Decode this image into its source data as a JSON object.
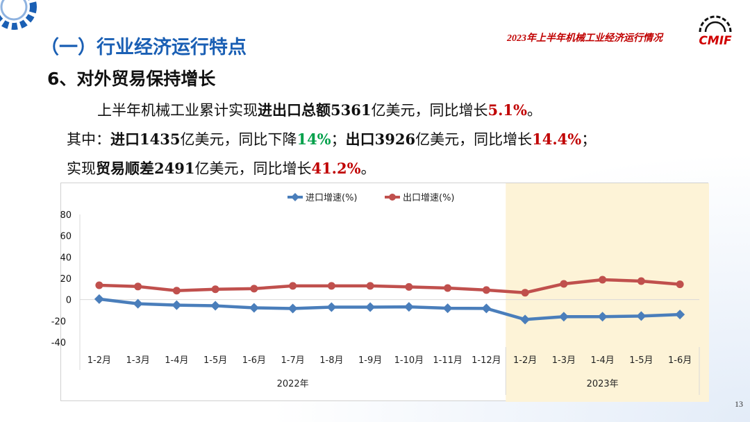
{
  "header": {
    "report_title": "2023年上半年机械工业经济运行情况",
    "logo_text": "CMIF"
  },
  "section_title": "（一）行业经济运行特点",
  "subtitle": "6、对外贸易保持增长",
  "paragraph": {
    "l1a": "上半年机械工业累计实现",
    "l1b": "进出口总额5361",
    "l1c": "亿美元，同比增长",
    "l1d": "5.1%",
    "l1e": "。",
    "l2a": "其中：",
    "l2b": "进口1435",
    "l2c": "亿美元，同比下降",
    "l2d": "14%",
    "l2e": "；",
    "l2f": "出口3926",
    "l2g": "亿美元，同比增长",
    "l2h": "14.4%",
    "l2i": "；",
    "l3a": "实现",
    "l3b": "贸易顺差2491",
    "l3c": "亿美元，同比增长",
    "l3d": "41.2%",
    "l3e": "。"
  },
  "page_number": "13",
  "colors": {
    "import": "#4a7ebb",
    "export": "#c0504d",
    "highlight": "#fdf3d7",
    "accent": "#1a5fb4"
  },
  "chart_data": {
    "type": "line",
    "categories": [
      "1-2月",
      "1-3月",
      "1-4月",
      "1-5月",
      "1-6月",
      "1-7月",
      "1-8月",
      "1-9月",
      "1-10月",
      "1-11月",
      "1-12月",
      "1-2月",
      "1-3月",
      "1-4月",
      "1-5月",
      "1-6月"
    ],
    "groups": [
      {
        "label": "2022年",
        "count": 11
      },
      {
        "label": "2023年",
        "count": 5,
        "highlight": true
      }
    ],
    "series": [
      {
        "name": "进口增速(%)",
        "marker": "diamond",
        "values": [
          0.5,
          -3.9,
          -5.2,
          -5.8,
          -7.7,
          -8.4,
          -7.1,
          -7.1,
          -6.8,
          -8.1,
          -8.3,
          -18.7,
          -16,
          -16,
          -15.5,
          -14
        ]
      },
      {
        "name": "出口增速(%)",
        "marker": "circle",
        "values": [
          13.5,
          12.3,
          8.4,
          9.7,
          10.3,
          12.9,
          12.9,
          12.9,
          11.9,
          10.9,
          9,
          6.5,
          14.8,
          18.7,
          17.4,
          14.4
        ]
      }
    ],
    "yticks": [
      80,
      60,
      40,
      20,
      0,
      -20,
      -40
    ],
    "ylim": [
      -40,
      80
    ],
    "legend": "top",
    "grid": false
  }
}
